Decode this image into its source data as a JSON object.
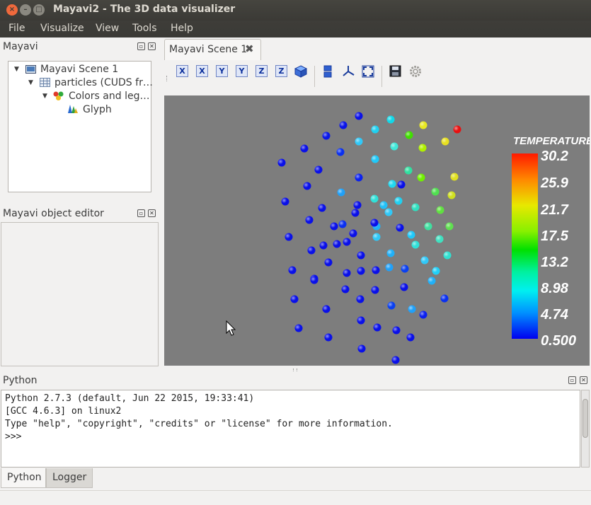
{
  "window": {
    "title": "Mayavi2 - The 3D data visualizer",
    "close_glyph": "×",
    "min_glyph": "–",
    "max_glyph": "□"
  },
  "menu": [
    "File",
    "Visualize",
    "View",
    "Tools",
    "Help"
  ],
  "mayavi_panel": {
    "title": "Mayavi",
    "tree": [
      {
        "label": "Mayavi Scene 1",
        "icon": "scene-icon"
      },
      {
        "label": "particles (CUDS fr…",
        "icon": "table-icon"
      },
      {
        "label": "Colors and leg…",
        "icon": "colors-legends-icon"
      },
      {
        "label": "Glyph",
        "icon": "glyph-icon"
      }
    ]
  },
  "object_editor": {
    "title": "Mayavi object editor"
  },
  "scene_tab": {
    "label": "Mayavi Scene 1",
    "close": "✖"
  },
  "toolbar": {
    "view_buttons": [
      "X",
      "X",
      "Y",
      "Y",
      "Z",
      "Z"
    ]
  },
  "colorbar": {
    "title": "TEMPERATURE",
    "labels": [
      "30.2",
      "25.9",
      "21.7",
      "17.5",
      "13.2",
      "8.98",
      "4.74",
      "0.500"
    ],
    "min": 0.5,
    "max": 30.2
  },
  "python_panel": {
    "title": "Python",
    "lines": [
      "Python 2.7.3 (default, Jun 22 2015, 19:33:41)",
      "[GCC 4.6.3] on linux2",
      "Type \"help\", \"copyright\", \"credits\" or \"license\" for more information.",
      ">>>"
    ]
  },
  "bottom_tabs": [
    "Python",
    "Logger"
  ],
  "colors": {
    "scene_bg": "#7d7d7d",
    "accent": "#f0693c"
  }
}
